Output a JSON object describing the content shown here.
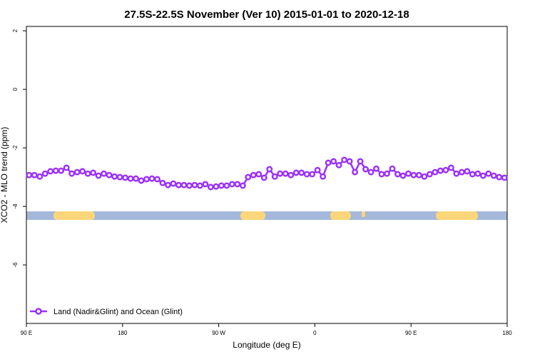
{
  "chart_data": {
    "type": "line",
    "title": "27.5S-22.5S November (Ver 10)   2015-01-01 to 2020-12-18",
    "x_label": "Longitude (deg E)",
    "y_label": "XCO2 - MLO trend (ppm)",
    "xlim": [
      90,
      540
    ],
    "ylim": [
      -8,
      2.15
    ],
    "xticks": [
      {
        "value": 90,
        "label": "90 E"
      },
      180,
      {
        "value": 270,
        "label": "90 W"
      },
      {
        "value": 360,
        "label": "0"
      },
      {
        "value": 450,
        "label": "90 E"
      },
      {
        "value": 540,
        "label": "180"
      }
    ],
    "yticks": [
      2,
      0,
      -2,
      -4,
      -6
    ],
    "legend": "bottom-left",
    "x": [
      92.5,
      97.5,
      102.5,
      107.5,
      112.5,
      117.5,
      122.5,
      127.5,
      132.5,
      137.5,
      142.5,
      147.5,
      152.5,
      157.5,
      162.5,
      167.5,
      172.5,
      177.5,
      182.5,
      187.5,
      192.5,
      197.5,
      202.5,
      207.5,
      212.5,
      217.5,
      222.5,
      227.5,
      232.5,
      237.5,
      242.5,
      247.5,
      252.5,
      257.5,
      262.5,
      267.5,
      272.5,
      277.5,
      282.5,
      287.5,
      292.5,
      297.5,
      302.5,
      307.5,
      312.5,
      317.5,
      322.5,
      327.5,
      332.5,
      337.5,
      342.5,
      347.5,
      352.5,
      357.5,
      362.5,
      367.5,
      372.5,
      377.5,
      382.5,
      387.5,
      392.5,
      397.5,
      402.5,
      407.5,
      412.5,
      417.5,
      422.5,
      427.5,
      432.5,
      437.5,
      442.5,
      447.5,
      452.5,
      457.5,
      462.5,
      467.5,
      472.5,
      477.5,
      482.5,
      487.5,
      492.5,
      497.5,
      502.5,
      507.5,
      512.5,
      517.5,
      522.5,
      527.5,
      532.5,
      537.5
    ],
    "series": [
      {
        "name": "Land (Nadir&Glint) and Ocean (Glint)",
        "color": "#9b30ff",
        "values": [
          -2.93,
          -2.93,
          -2.98,
          -2.88,
          -2.8,
          -2.78,
          -2.78,
          -2.68,
          -2.88,
          -2.83,
          -2.8,
          -2.88,
          -2.85,
          -2.95,
          -2.88,
          -2.93,
          -2.98,
          -3.0,
          -3.02,
          -3.05,
          -3.05,
          -3.12,
          -3.07,
          -3.05,
          -3.07,
          -3.2,
          -3.27,
          -3.22,
          -3.27,
          -3.27,
          -3.29,
          -3.27,
          -3.29,
          -3.24,
          -3.34,
          -3.32,
          -3.29,
          -3.29,
          -3.24,
          -3.24,
          -3.29,
          -3.0,
          -2.93,
          -2.9,
          -3.02,
          -2.73,
          -2.98,
          -2.88,
          -2.88,
          -2.93,
          -2.85,
          -2.85,
          -2.9,
          -2.9,
          -2.76,
          -2.98,
          -2.51,
          -2.46,
          -2.59,
          -2.41,
          -2.46,
          -2.83,
          -2.46,
          -2.73,
          -2.83,
          -2.71,
          -2.9,
          -2.88,
          -2.71,
          -2.9,
          -2.95,
          -2.88,
          -2.93,
          -2.93,
          -2.98,
          -2.9,
          -2.83,
          -2.78,
          -2.76,
          -2.68,
          -2.88,
          -2.83,
          -2.8,
          -2.9,
          -2.88,
          -2.95,
          -2.88,
          -2.95,
          -3.0,
          -3.02
        ]
      }
    ]
  }
}
